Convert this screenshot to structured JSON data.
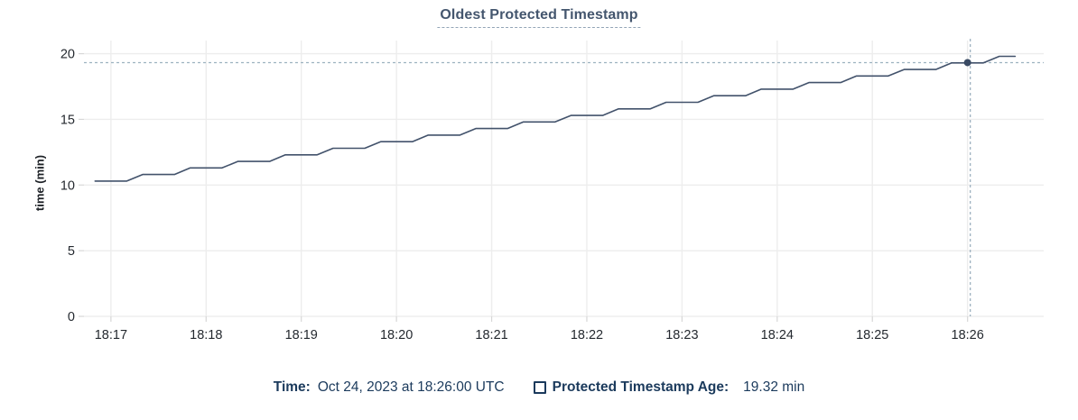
{
  "chart": {
    "title": "Oldest Protected Timestamp",
    "y_axis_title": "time (min)"
  },
  "legend": {
    "time_label": "Time:",
    "time_value": "Oct 24, 2023 at 18:26:00 UTC",
    "series_label": "Protected Timestamp Age:",
    "series_value": "19.32 min"
  },
  "chart_data": {
    "type": "line",
    "title": "Oldest Protected Timestamp",
    "xlabel": "",
    "ylabel": "time (min)",
    "grid": true,
    "x_ticks": [
      "18:17",
      "18:18",
      "18:19",
      "18:20",
      "18:21",
      "18:22",
      "18:23",
      "18:24",
      "18:25",
      "18:26"
    ],
    "y_ticks": [
      0,
      5,
      10,
      15,
      20
    ],
    "ylim": [
      0,
      21
    ],
    "x_range": [
      "18:16:43",
      "18:26:48"
    ],
    "series": [
      {
        "name": "Protected Timestamp Age",
        "unit": "min",
        "points": [
          [
            "18:16:50",
            10.3
          ],
          [
            "18:17:10",
            10.3
          ],
          [
            "18:17:20",
            10.8
          ],
          [
            "18:17:40",
            10.8
          ],
          [
            "18:17:50",
            11.3
          ],
          [
            "18:18:10",
            11.3
          ],
          [
            "18:18:20",
            11.8
          ],
          [
            "18:18:40",
            11.8
          ],
          [
            "18:18:50",
            12.3
          ],
          [
            "18:19:10",
            12.3
          ],
          [
            "18:19:20",
            12.8
          ],
          [
            "18:19:40",
            12.8
          ],
          [
            "18:19:50",
            13.3
          ],
          [
            "18:20:10",
            13.3
          ],
          [
            "18:20:20",
            13.8
          ],
          [
            "18:20:40",
            13.8
          ],
          [
            "18:20:50",
            14.3
          ],
          [
            "18:21:10",
            14.3
          ],
          [
            "18:21:20",
            14.8
          ],
          [
            "18:21:40",
            14.8
          ],
          [
            "18:21:50",
            15.3
          ],
          [
            "18:22:10",
            15.3
          ],
          [
            "18:22:20",
            15.8
          ],
          [
            "18:22:40",
            15.8
          ],
          [
            "18:22:50",
            16.3
          ],
          [
            "18:23:10",
            16.3
          ],
          [
            "18:23:20",
            16.8
          ],
          [
            "18:23:40",
            16.8
          ],
          [
            "18:23:50",
            17.3
          ],
          [
            "18:24:10",
            17.3
          ],
          [
            "18:24:20",
            17.8
          ],
          [
            "18:24:40",
            17.8
          ],
          [
            "18:24:50",
            18.3
          ],
          [
            "18:25:10",
            18.3
          ],
          [
            "18:25:20",
            18.8
          ],
          [
            "18:25:40",
            18.8
          ],
          [
            "18:25:50",
            19.3
          ],
          [
            "18:26:10",
            19.3
          ],
          [
            "18:26:20",
            19.8
          ],
          [
            "18:26:30",
            19.8
          ]
        ]
      }
    ],
    "crosshair": {
      "time": "18:26:00",
      "value": 19.32
    },
    "colors": {
      "line": "#42526b",
      "point": "#394a63",
      "crosshair": "#9db2c0",
      "grid": "#ededed",
      "tick": "#d7d7d7",
      "axis_text": "#24292f",
      "navy": "#1b3a5c",
      "title": "#44566e"
    }
  }
}
